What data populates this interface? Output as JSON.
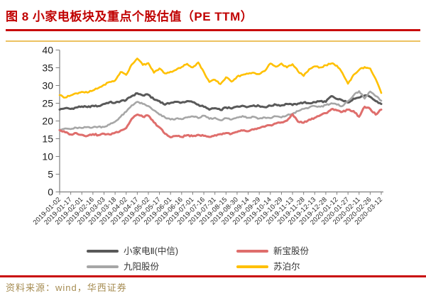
{
  "page": {
    "title": "图 8  小家电板块及重点个股估值（PE TTM）",
    "footer": "资料来源：wind，华西证券"
  },
  "colors": {
    "title_red": "#C00000",
    "rule_red": "#C90B0B",
    "rule_gold": "#EBBF58",
    "footer_gold": "#A68C52",
    "axis_gray": "#808080",
    "y_label_color": "#1a1a1a",
    "x_label_color": "#262626"
  },
  "legend": {
    "order": [
      "xiaojiadian2-citic",
      "xinbao",
      "joyoung",
      "supor"
    ]
  },
  "chart_data": {
    "type": "line",
    "title": "小家电板块及重点个股估值（PE TTM）",
    "xlabel": "",
    "ylabel": "",
    "ylim": [
      0,
      40
    ],
    "y_ticks": [
      0,
      5,
      10,
      15,
      20,
      25,
      30,
      35,
      40
    ],
    "grid": false,
    "legend_position": "bottom",
    "x_tick_labels": [
      "2019-01-02",
      "2019-01-17",
      "2019-02-01",
      "2019-02-16",
      "2019-03-03",
      "2019-03-18",
      "2019-04-02",
      "2019-04-17",
      "2019-05-02",
      "2019-05-17",
      "2019-06-01",
      "2019-06-16",
      "2019-07-01",
      "2019-07-16",
      "2019-07-31",
      "2019-08-15",
      "2019-08-30",
      "2019-09-14",
      "2019-09-29",
      "2019-10-14",
      "2019-10-29",
      "2019-11-13",
      "2019-11-28",
      "2019-12-13",
      "2019-12-28",
      "2020-01-12",
      "2020-01-27",
      "2020-02-11",
      "2020-02-26",
      "2020-03-12"
    ],
    "points_per_tick": 2,
    "series": [
      {
        "id": "xiaojiadian2-citic",
        "name": "小家电Ⅱ(中信)",
        "color": "#595959",
        "width": 3,
        "values": [
          23.2,
          23.6,
          23.4,
          23.8,
          24.1,
          23.9,
          24.3,
          24.2,
          24.8,
          25.3,
          25.1,
          25.6,
          25.9,
          27.0,
          27.8,
          27.2,
          27.4,
          26.1,
          25.6,
          24.6,
          25.1,
          25.4,
          25.2,
          25.6,
          25.3,
          24.6,
          24.0,
          23.2,
          23.6,
          23.1,
          23.8,
          23.5,
          24.1,
          24.3,
          24.0,
          24.4,
          24.2,
          23.9,
          24.3,
          24.6,
          24.4,
          24.8,
          24.5,
          24.9,
          25.2,
          25.0,
          25.3,
          25.6,
          25.4,
          27.0,
          26.2,
          25.8,
          25.2,
          26.3,
          26.6,
          27.2,
          26.8,
          25.6,
          24.8
        ]
      },
      {
        "id": "joyoung",
        "name": "九阳股份",
        "color": "#A6A6A6",
        "width": 2.6,
        "values": [
          17.6,
          17.9,
          17.7,
          18.1,
          18.0,
          18.3,
          18.2,
          18.4,
          18.3,
          19.0,
          19.8,
          21.2,
          22.6,
          24.4,
          25.4,
          24.8,
          24.2,
          23.0,
          21.8,
          21.0,
          20.4,
          20.7,
          20.5,
          21.0,
          21.3,
          20.8,
          21.5,
          20.6,
          20.9,
          20.2,
          20.8,
          20.4,
          21.0,
          21.4,
          20.9,
          21.2,
          20.7,
          21.0,
          20.8,
          21.3,
          21.0,
          21.6,
          22.0,
          22.8,
          23.4,
          23.8,
          24.2,
          24.0,
          24.5,
          25.0,
          24.6,
          24.2,
          25.6,
          27.2,
          28.4,
          26.3,
          28.3,
          27.0,
          25.7
        ]
      },
      {
        "id": "xinbao",
        "name": "新宝股份",
        "color": "#DF6E6C",
        "width": 3,
        "values": [
          17.4,
          16.8,
          16.2,
          16.6,
          16.1,
          15.8,
          16.3,
          16.0,
          16.4,
          16.2,
          16.7,
          17.3,
          18.0,
          20.6,
          21.8,
          21.2,
          21.5,
          19.6,
          18.2,
          16.4,
          15.4,
          15.8,
          15.5,
          16.0,
          15.7,
          16.1,
          15.8,
          15.5,
          16.0,
          16.3,
          16.6,
          16.4,
          16.9,
          17.3,
          17.1,
          17.6,
          18.0,
          18.4,
          18.8,
          19.3,
          19.6,
          20.1,
          21.9,
          19.8,
          19.5,
          20.4,
          20.9,
          21.6,
          22.2,
          23.3,
          23.0,
          22.6,
          23.2,
          22.8,
          21.2,
          24.0,
          23.4,
          21.8,
          23.2
        ]
      },
      {
        "id": "supor",
        "name": "苏泊尔",
        "color": "#FFC000",
        "width": 2.6,
        "values": [
          27.3,
          26.6,
          27.2,
          27.8,
          28.2,
          28.0,
          28.6,
          29.3,
          30.2,
          31.0,
          31.4,
          33.8,
          33.0,
          35.9,
          37.6,
          35.8,
          36.3,
          33.6,
          34.8,
          33.4,
          33.9,
          34.4,
          35.2,
          36.1,
          35.1,
          36.5,
          33.8,
          31.0,
          31.6,
          30.4,
          32.3,
          31.1,
          32.5,
          33.0,
          33.3,
          33.6,
          33.2,
          34.1,
          36.2,
          35.3,
          36.2,
          35.1,
          36.0,
          34.0,
          32.7,
          34.6,
          35.4,
          35.1,
          35.7,
          36.2,
          35.6,
          33.5,
          30.5,
          33.0,
          34.4,
          35.2,
          34.8,
          31.8,
          27.9
        ]
      }
    ]
  }
}
